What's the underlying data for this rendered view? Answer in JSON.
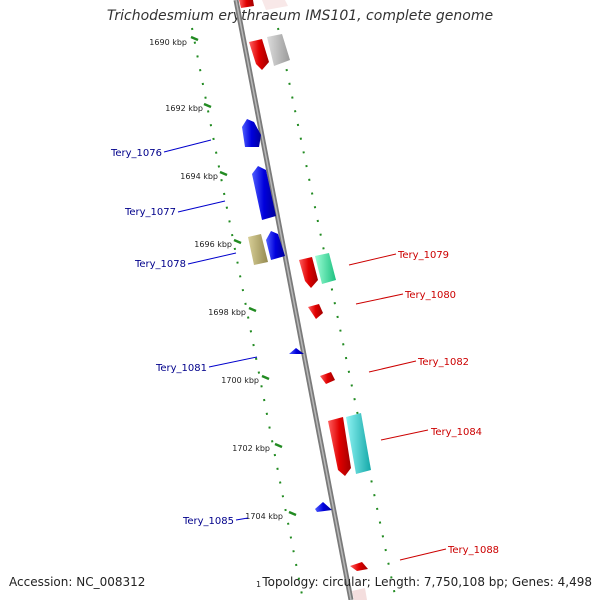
{
  "title": "Trichodesmium erythraeum IMS101, complete genome",
  "accession": "Accession: NC_008312",
  "genome_info": "Topology: circular; Length: 7,750,108 bp; Genes: 4,498",
  "corner_mark": "1",
  "ticks": [
    {
      "label": "1690 kbp",
      "kbp": 1690
    },
    {
      "label": "1692 kbp",
      "kbp": 1692
    },
    {
      "label": "1694 kbp",
      "kbp": 1694
    },
    {
      "label": "1696 kbp",
      "kbp": 1696
    },
    {
      "label": "1698 kbp",
      "kbp": 1698
    },
    {
      "label": "1700 kbp",
      "kbp": 1700
    },
    {
      "label": "1702 kbp",
      "kbp": 1702
    },
    {
      "label": "1704 kbp",
      "kbp": 1704
    }
  ],
  "gene_labels_left": [
    {
      "name": "Tery_1076"
    },
    {
      "name": "Tery_1077"
    },
    {
      "name": "Tery_1078"
    },
    {
      "name": "Tery_1081"
    },
    {
      "name": "Tery_1085"
    }
  ],
  "gene_labels_right": [
    {
      "name": "Tery_1079"
    },
    {
      "name": "Tery_1080"
    },
    {
      "name": "Tery_1082"
    },
    {
      "name": "Tery_1084"
    },
    {
      "name": "Tery_1088"
    }
  ],
  "colors": {
    "backbone": "#808080",
    "dotted_track": "#228b22",
    "reverse_gene": "#e00000",
    "forward_gene": "#0000dd",
    "grey_gene": "#b5b5b5",
    "olive_gene": "#b5a96a",
    "mint_gene": "#2ee6a0",
    "cyan_gene": "#20c8c8"
  }
}
